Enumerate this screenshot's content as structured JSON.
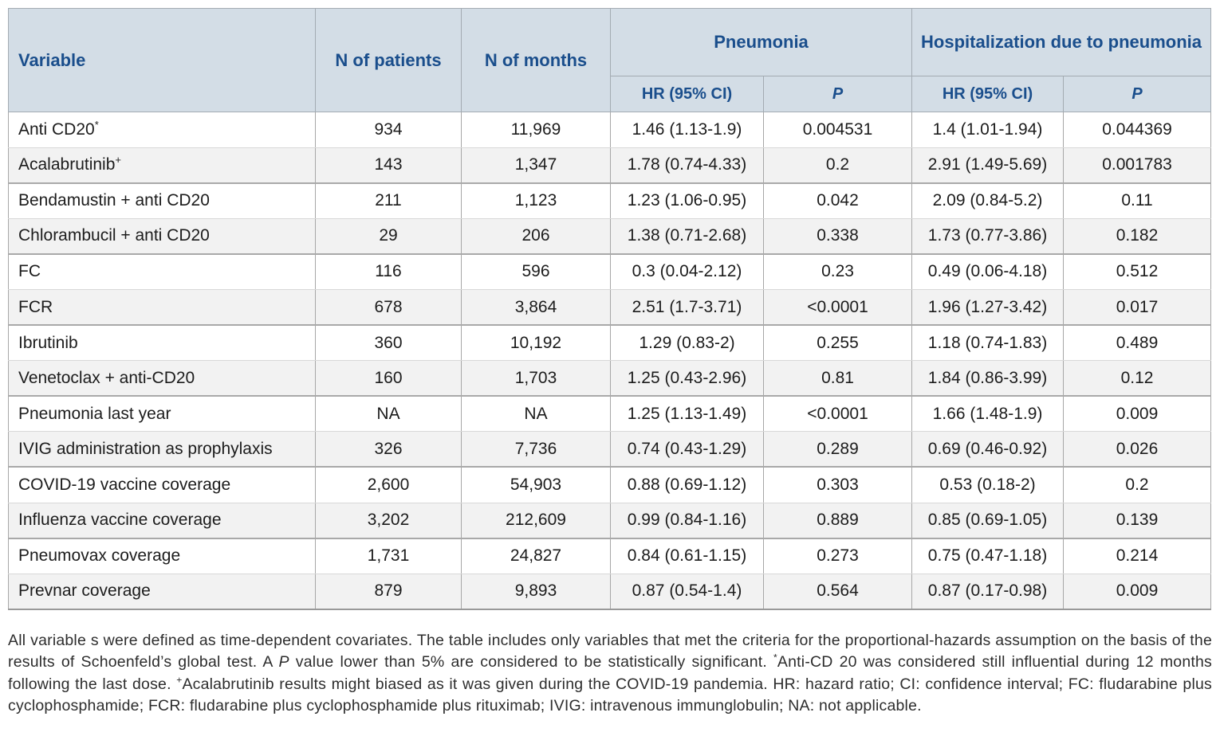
{
  "table": {
    "header": {
      "variable": "Variable",
      "n_patients": "N of patients",
      "n_months": "N of months",
      "pneumonia_group": "Pneumonia",
      "hospitalization_group": "Hospitalization due to pneumonia",
      "hr_label_pneumonia": "HR (95% CI)",
      "p_label_pneumonia": "P",
      "hr_label_hospitalization": "HR (95% CI)",
      "p_label_hospitalization": "P"
    },
    "rows": [
      {
        "variable": "Anti CD20",
        "sup": "*",
        "n_patients": "934",
        "n_months": "11,969",
        "pneumonia_hr": "1.46 (1.13-1.9)",
        "pneumonia_p": "0.004531",
        "hosp_hr": "1.4 (1.01-1.94)",
        "hosp_p": "0.044369"
      },
      {
        "variable": "Acalabrutinib",
        "sup": "+",
        "n_patients": "143",
        "n_months": "1,347",
        "pneumonia_hr": "1.78 (0.74-4.33)",
        "pneumonia_p": "0.2",
        "hosp_hr": "2.91 (1.49-5.69)",
        "hosp_p": "0.001783"
      },
      {
        "variable": "Bendamustin + anti CD20",
        "sup": "",
        "n_patients": "211",
        "n_months": "1,123",
        "pneumonia_hr": "1.23 (1.06-0.95)",
        "pneumonia_p": "0.042",
        "hosp_hr": "2.09 (0.84-5.2)",
        "hosp_p": "0.11"
      },
      {
        "variable": "Chlorambucil + anti CD20",
        "sup": "",
        "n_patients": "29",
        "n_months": "206",
        "pneumonia_hr": "1.38 (0.71-2.68)",
        "pneumonia_p": "0.338",
        "hosp_hr": "1.73 (0.77-3.86)",
        "hosp_p": "0.182"
      },
      {
        "variable": "FC",
        "sup": "",
        "n_patients": "116",
        "n_months": "596",
        "pneumonia_hr": "0.3 (0.04-2.12)",
        "pneumonia_p": "0.23",
        "hosp_hr": "0.49 (0.06-4.18)",
        "hosp_p": "0.512"
      },
      {
        "variable": "FCR",
        "sup": "",
        "n_patients": "678",
        "n_months": "3,864",
        "pneumonia_hr": "2.51 (1.7-3.71)",
        "pneumonia_p": "<0.0001",
        "hosp_hr": "1.96 (1.27-3.42)",
        "hosp_p": "0.017"
      },
      {
        "variable": "Ibrutinib",
        "sup": "",
        "n_patients": "360",
        "n_months": "10,192",
        "pneumonia_hr": "1.29 (0.83-2)",
        "pneumonia_p": "0.255",
        "hosp_hr": "1.18 (0.74-1.83)",
        "hosp_p": "0.489"
      },
      {
        "variable": "Venetoclax + anti-CD20",
        "sup": "",
        "n_patients": "160",
        "n_months": "1,703",
        "pneumonia_hr": "1.25 (0.43-2.96)",
        "pneumonia_p": "0.81",
        "hosp_hr": "1.84 (0.86-3.99)",
        "hosp_p": "0.12"
      },
      {
        "variable": "Pneumonia last year",
        "sup": "",
        "n_patients": "NA",
        "n_months": "NA",
        "pneumonia_hr": "1.25 (1.13-1.49)",
        "pneumonia_p": "<0.0001",
        "hosp_hr": "1.66 (1.48-1.9)",
        "hosp_p": "0.009"
      },
      {
        "variable": "IVIG administration as prophylaxis",
        "sup": "",
        "n_patients": "326",
        "n_months": "7,736",
        "pneumonia_hr": "0.74 (0.43-1.29)",
        "pneumonia_p": "0.289",
        "hosp_hr": "0.69 (0.46-0.92)",
        "hosp_p": "0.026"
      },
      {
        "variable": "COVID-19 vaccine coverage",
        "sup": "",
        "n_patients": "2,600",
        "n_months": "54,903",
        "pneumonia_hr": "0.88 (0.69-1.12)",
        "pneumonia_p": "0.303",
        "hosp_hr": "0.53 (0.18-2)",
        "hosp_p": "0.2"
      },
      {
        "variable": "Influenza vaccine coverage",
        "sup": "",
        "n_patients": "3,202",
        "n_months": "212,609",
        "pneumonia_hr": "0.99 (0.84-1.16)",
        "pneumonia_p": "0.889",
        "hosp_hr": "0.85 (0.69-1.05)",
        "hosp_p": "0.139"
      },
      {
        "variable": "Pneumovax coverage",
        "sup": "",
        "n_patients": "1,731",
        "n_months": "24,827",
        "pneumonia_hr": "0.84 (0.61-1.15)",
        "pneumonia_p": "0.273",
        "hosp_hr": "0.75 (0.47-1.18)",
        "hosp_p": "0.214"
      },
      {
        "variable": "Prevnar coverage",
        "sup": "",
        "n_patients": "879",
        "n_months": "9,893",
        "pneumonia_hr": "0.87 (0.54-1.4)",
        "pneumonia_p": "0.564",
        "hosp_hr": "0.87 (0.17-0.98)",
        "hosp_p": "0.009"
      }
    ]
  },
  "footnote": {
    "part1": "All variable s were defined as time-dependent covariates. The table includes only variables that met the criteria for the proportional-hazards assumption on the basis of the results of Schoenfeld’s global test. A ",
    "p_italic": "P",
    "part2": " value lower than 5% are considered to be statistically significant. ",
    "star": "*",
    "part3": "Anti-CD 20 was considered still influential during 12 months following the last dose. ",
    "plus": "+",
    "part4": "Acalabrutinib results might biased as it was given during the COVID-19 pandemia. HR: hazard ratio; CI: confidence interval; FC: fludarabine plus cyclophosphamide; FCR: fludarabine plus cyclophosphamide plus rituximab; IVIG: intravenous immunglobulin; NA: not applicable."
  },
  "colors": {
    "header_bg": "#d3dde6",
    "header_text": "#1a4e8c",
    "row_alt_bg": "#f2f2f2",
    "body_text": "#1c1c1c",
    "grid_dark": "#a7a7a7",
    "grid_light": "#d8d8d8"
  }
}
